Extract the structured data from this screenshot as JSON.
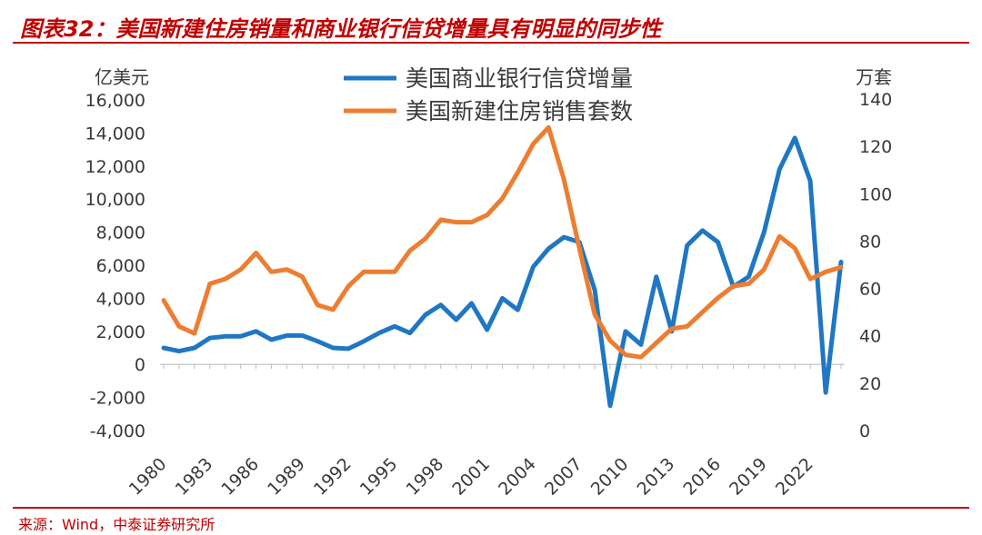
{
  "header": {
    "title": "图表32：美国新建住房销量和商业银行信贷增量具有明显的同步性"
  },
  "footer": {
    "source": "来源：Wind，中泰证券研究所"
  },
  "colors": {
    "accent": "#c00000",
    "series_loan": "#1f77c4",
    "series_housing": "#ed7d31",
    "text": "#3a3a3a"
  },
  "chart_data": {
    "type": "line",
    "title": "",
    "left_unit": "亿美元",
    "right_unit": "万套",
    "x": [
      1980,
      1981,
      1982,
      1983,
      1984,
      1985,
      1986,
      1987,
      1988,
      1989,
      1990,
      1991,
      1992,
      1993,
      1994,
      1995,
      1996,
      1997,
      1998,
      1999,
      2000,
      2001,
      2002,
      2003,
      2004,
      2005,
      2006,
      2007,
      2008,
      2009,
      2010,
      2011,
      2012,
      2013,
      2014,
      2015,
      2016,
      2017,
      2018,
      2019,
      2020,
      2021,
      2022,
      2023,
      2024
    ],
    "x_ticks": [
      "1980",
      "1983",
      "1986",
      "1989",
      "1992",
      "1995",
      "1998",
      "2001",
      "2004",
      "2007",
      "2010",
      "2013",
      "2016",
      "2019",
      "2022"
    ],
    "y_left_ticks": [
      "16,000",
      "14,000",
      "12,000",
      "10,000",
      "8,000",
      "6,000",
      "4,000",
      "2,000",
      "0",
      "-2,000",
      "-4,000"
    ],
    "y_right_ticks": [
      "140",
      "120",
      "100",
      "80",
      "60",
      "40",
      "20",
      "0"
    ],
    "ylim_left": [
      -4000,
      16000
    ],
    "ylim_right": [
      0,
      140
    ],
    "legend_position": "top-center",
    "series": [
      {
        "name": "美国商业银行信贷增量",
        "axis": "left",
        "values": [
          1000,
          800,
          1000,
          1600,
          1700,
          1700,
          2000,
          1500,
          1750,
          1750,
          1400,
          1000,
          950,
          1400,
          1900,
          2300,
          1900,
          3000,
          3600,
          2700,
          3700,
          2100,
          4000,
          3300,
          5900,
          7000,
          7700,
          7400,
          4500,
          -2500,
          2000,
          1200,
          5300,
          2000,
          7200,
          8100,
          7400,
          4700,
          5300,
          8000,
          11800,
          13700,
          11100,
          -1700,
          6200
        ]
      },
      {
        "name": "美国新建住房销售套数",
        "axis": "right",
        "values": [
          55,
          44,
          41,
          62,
          64,
          68,
          75,
          67,
          68,
          65,
          53,
          51,
          61,
          67,
          67,
          67,
          76,
          81,
          89,
          88,
          88,
          91,
          98,
          109,
          121,
          128,
          106,
          77,
          49,
          38,
          32,
          31,
          37,
          43,
          44,
          50,
          56,
          61,
          62,
          68,
          82,
          77,
          64,
          67,
          69
        ]
      }
    ]
  }
}
